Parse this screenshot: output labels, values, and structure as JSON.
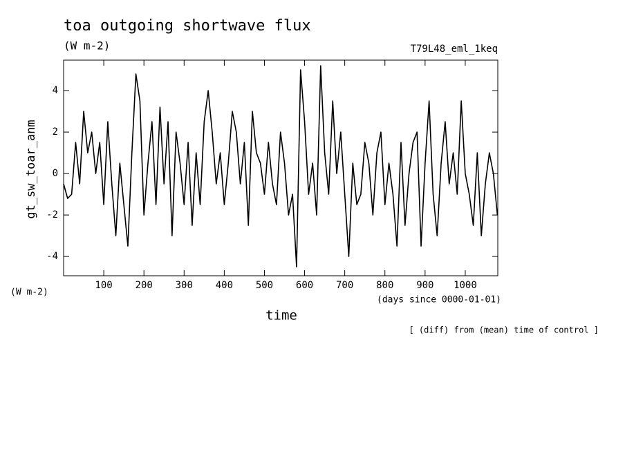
{
  "chart_data": {
    "type": "line",
    "title": "toa outgoing shortwave flux",
    "subtitle": "(W m-2)",
    "run_label": "T79L48_eml_1keq",
    "y_label": "gt_sw_toar_anm",
    "y_unit": "(W m-2)",
    "x_label": "time",
    "x_unit": "(days since 0000-01-01)",
    "note": "[ (diff) from (mean) time of control ]",
    "x": [
      0,
      10,
      20,
      30,
      40,
      50,
      60,
      70,
      80,
      90,
      100,
      110,
      120,
      130,
      140,
      150,
      160,
      170,
      180,
      190,
      200,
      210,
      220,
      230,
      240,
      250,
      260,
      270,
      280,
      290,
      300,
      310,
      320,
      330,
      340,
      350,
      360,
      370,
      380,
      390,
      400,
      410,
      420,
      430,
      440,
      450,
      460,
      470,
      480,
      490,
      500,
      510,
      520,
      530,
      540,
      550,
      560,
      570,
      580,
      590,
      600,
      610,
      620,
      630,
      640,
      650,
      660,
      670,
      680,
      690,
      700,
      710,
      720,
      730,
      740,
      750,
      760,
      770,
      780,
      790,
      800,
      810,
      820,
      830,
      840,
      850,
      860,
      870,
      880,
      890,
      900,
      910,
      920,
      930,
      940,
      950,
      960,
      970,
      980,
      990,
      1000,
      1010,
      1020,
      1030,
      1040,
      1050,
      1060,
      1070,
      1080
    ],
    "values": [
      -0.5,
      -1.2,
      -1,
      1.5,
      -0.5,
      3,
      1,
      2,
      0,
      1.5,
      -1.5,
      2.5,
      -0.5,
      -3,
      0.5,
      -1.5,
      -3.5,
      1,
      4.8,
      3.5,
      -2,
      0.5,
      2.5,
      -1.5,
      3.2,
      -0.5,
      2.5,
      -3,
      2,
      0.5,
      -1.5,
      1.5,
      -2.5,
      1,
      -1.5,
      2.5,
      4,
      2,
      -0.5,
      1,
      -1.5,
      0.5,
      3,
      2,
      -0.5,
      1.5,
      -2.5,
      3,
      1,
      0.5,
      -1,
      1.5,
      -0.5,
      -1.5,
      2,
      0.5,
      -2,
      -1,
      -4.5,
      5,
      2.5,
      -1,
      0.5,
      -2,
      5.2,
      1,
      -1,
      3.5,
      0,
      2,
      -1,
      -4,
      0.5,
      -1.5,
      -1,
      1.5,
      0.5,
      -2,
      1,
      2,
      -1.5,
      0.5,
      -1,
      -3.5,
      1.5,
      -2.5,
      0,
      1.5,
      2,
      -3.5,
      0.5,
      3.5,
      -1,
      -3,
      0.5,
      2.5,
      -0.5,
      1,
      -1,
      3.5,
      0,
      -1,
      -2.5,
      1,
      -3,
      -0.5,
      1,
      0,
      -2
    ],
    "color": "#000000",
    "xlim": [
      0,
      1081
    ],
    "xticks": [
      100,
      200,
      300,
      400,
      500,
      600,
      700,
      800,
      900,
      1000
    ],
    "ylim": [
      -4.93,
      5.47
    ],
    "yticks": [
      -4,
      -2,
      0,
      2,
      4
    ]
  }
}
